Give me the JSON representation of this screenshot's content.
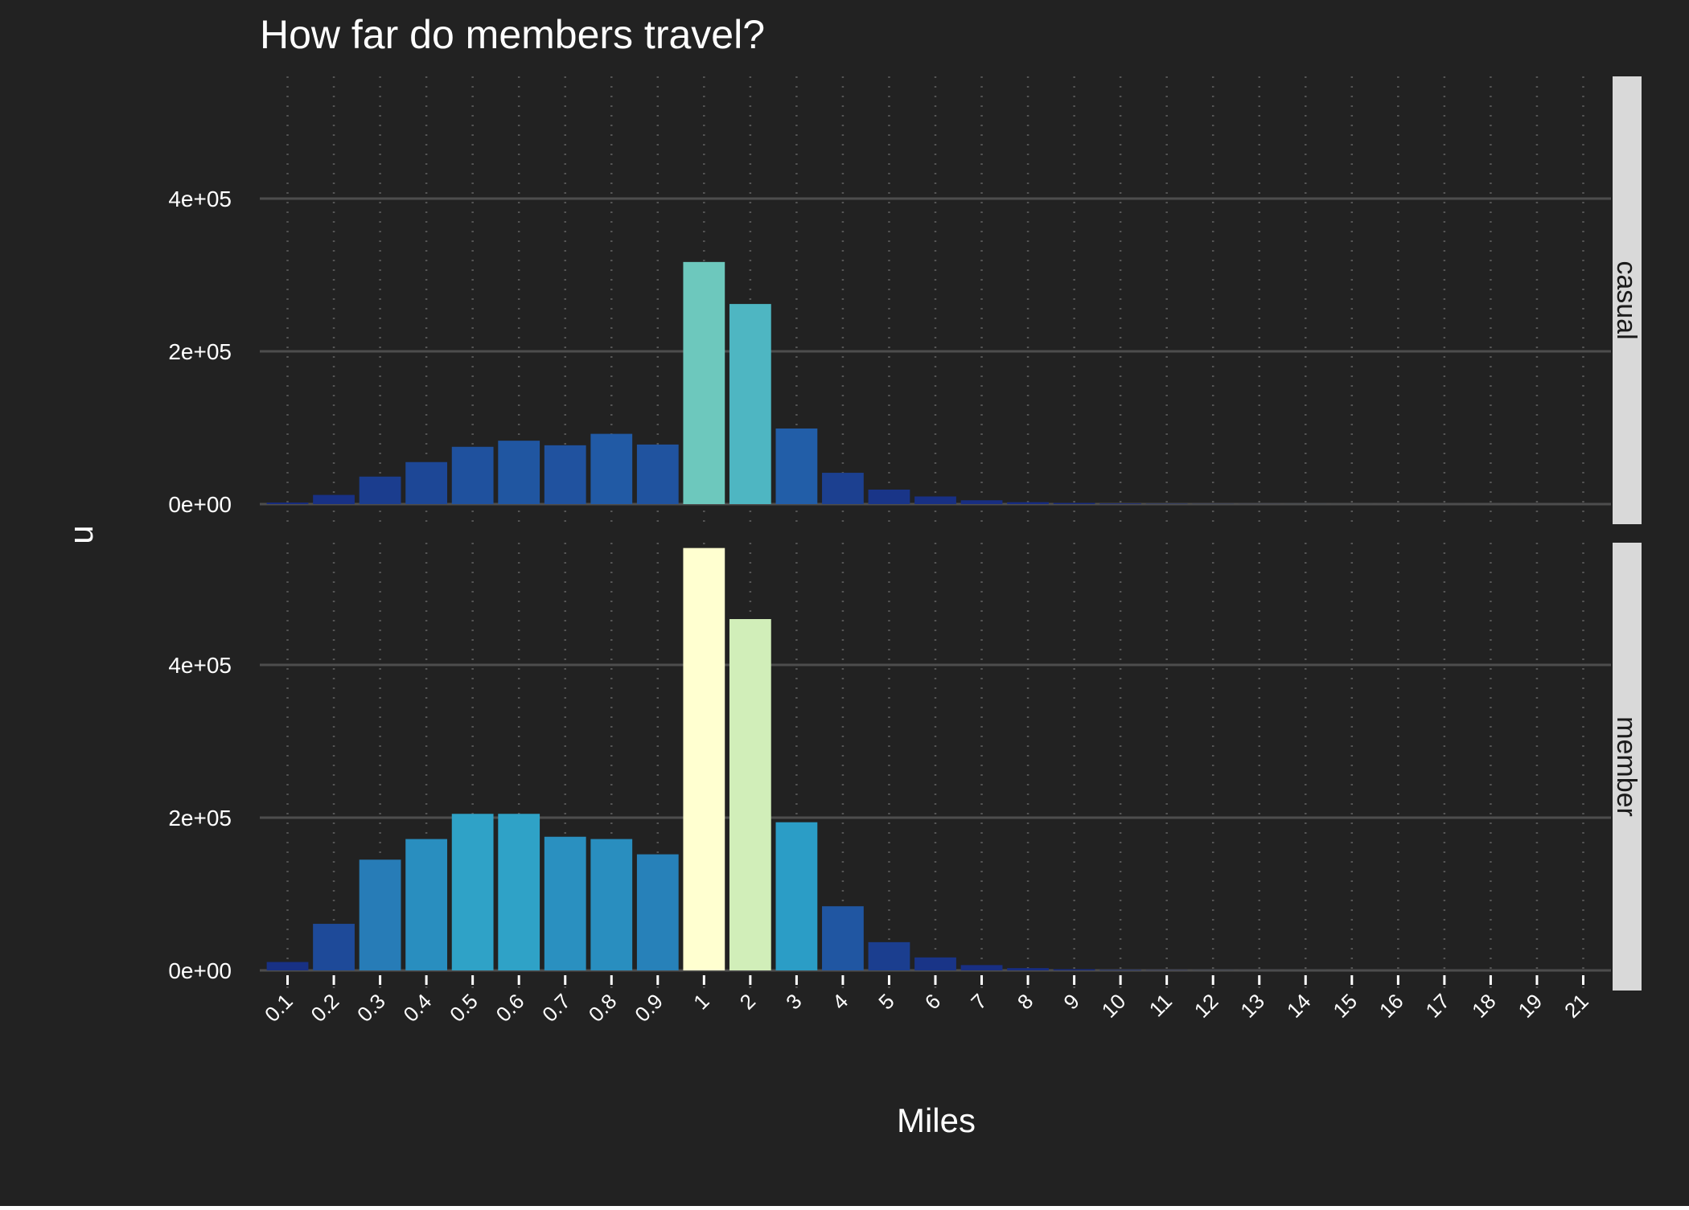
{
  "chart_data": {
    "type": "bar",
    "title": "How far do members travel?",
    "xlabel": "Miles",
    "ylabel": "n",
    "categories": [
      "0.1",
      "0.2",
      "0.3",
      "0.4",
      "0.5",
      "0.6",
      "0.7",
      "0.8",
      "0.9",
      "1",
      "2",
      "3",
      "4",
      "5",
      "6",
      "7",
      "8",
      "9",
      "10",
      "11",
      "12",
      "13",
      "14",
      "15",
      "16",
      "17",
      "18",
      "19",
      "21"
    ],
    "ylim": [
      0,
      560000
    ],
    "yticks": [
      {
        "value": 0,
        "label": "0e+00"
      },
      {
        "value": 200000,
        "label": "2e+05"
      },
      {
        "value": 400000,
        "label": "4e+05"
      }
    ],
    "grid": true,
    "facets": [
      {
        "name": "casual",
        "values": [
          2000,
          12000,
          36000,
          55000,
          75000,
          83000,
          77000,
          92000,
          78000,
          317000,
          262000,
          99000,
          41000,
          19000,
          10000,
          5000,
          2500,
          1500,
          800,
          400,
          200,
          100,
          50,
          30,
          20,
          10,
          5,
          5,
          5
        ]
      },
      {
        "name": "member",
        "values": [
          11000,
          61000,
          145000,
          172000,
          205000,
          205000,
          175000,
          172000,
          152000,
          553000,
          460000,
          194000,
          84000,
          37000,
          17000,
          7000,
          3000,
          1500,
          700,
          300,
          150,
          80,
          40,
          20,
          10,
          5,
          5,
          5,
          5
        ]
      }
    ],
    "colors": {
      "page": "#ffffff",
      "panel_background": "#222222",
      "grid_major": "#4d4d4d",
      "grid_minor": "#555555",
      "strip_background": "#d9d9d9",
      "strip_text": "#1a1a1a",
      "text": "#ffffff",
      "palette_low": "#172b80",
      "palette_mid": "#2ca0c8",
      "palette_mid2": "#c8ebb5",
      "palette_high": "#ffffd0"
    }
  }
}
